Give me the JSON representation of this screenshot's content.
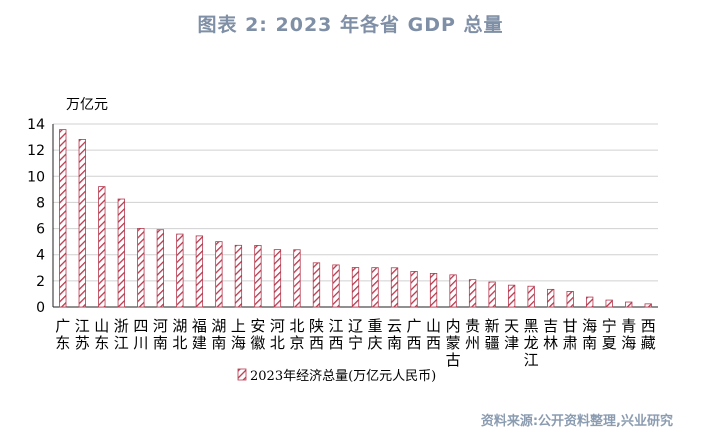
{
  "title": "图表 2:  2023 年各省 GDP 总量",
  "source": "资料来源:公开资料整理,兴业研究",
  "colors": {
    "bar_stroke": "#b5394e",
    "title": "#7f8fa6",
    "source": "#8b9cb1"
  },
  "chart_data": {
    "type": "bar",
    "title": "图表 2:  2023 年各省 GDP 总量",
    "ylabel": "万亿元",
    "xlabel": "",
    "ylim": [
      0,
      14
    ],
    "yticks": [
      0,
      2,
      4,
      6,
      8,
      10,
      12,
      14
    ],
    "grid": true,
    "legend_position": "bottom-center",
    "categories": [
      "广东",
      "江苏",
      "山东",
      "浙江",
      "四川",
      "河南",
      "湖北",
      "福建",
      "湖南",
      "上海",
      "安徽",
      "河北",
      "北京",
      "陕西",
      "江西",
      "辽宁",
      "重庆",
      "云南",
      "广西",
      "山西",
      "内蒙古",
      "贵州",
      "新疆",
      "天津",
      "黑龙江",
      "吉林",
      "甘肃",
      "海南",
      "宁夏",
      "青海",
      "西藏"
    ],
    "series": [
      {
        "name": "2023年经济总量(万亿元人民币)",
        "values": [
          13.57,
          12.82,
          9.21,
          8.26,
          6.01,
          5.91,
          5.58,
          5.44,
          5.0,
          4.72,
          4.71,
          4.39,
          4.38,
          3.38,
          3.22,
          3.02,
          3.01,
          3.0,
          2.72,
          2.57,
          2.46,
          2.09,
          1.91,
          1.67,
          1.59,
          1.35,
          1.19,
          0.76,
          0.53,
          0.38,
          0.24
        ]
      }
    ]
  }
}
